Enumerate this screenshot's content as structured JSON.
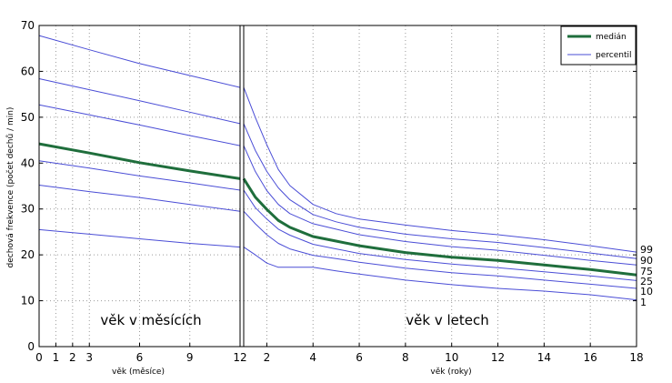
{
  "chart_data": [
    {
      "type": "line",
      "panel": "months",
      "xlabel": "věk (měsíce)",
      "ylabel": "dechová frekvence (počet dechů / min)",
      "panel_label": "věk v měsících",
      "xlim": [
        0,
        12
      ],
      "ylim": [
        0,
        70
      ],
      "x_ticks": [
        0,
        1,
        2,
        3,
        6,
        9,
        12
      ],
      "y_ticks": [
        0,
        10,
        20,
        30,
        40,
        50,
        60,
        70
      ],
      "grid": true,
      "x": [
        0,
        3,
        6,
        9,
        12
      ],
      "series": [
        {
          "name": "medián",
          "role": "median",
          "values": [
            44.2,
            42.2,
            40.1,
            38.3,
            36.6
          ]
        },
        {
          "percentile": "1",
          "values": [
            25.5,
            24.5,
            23.5,
            22.5,
            21.7
          ]
        },
        {
          "percentile": "10",
          "values": [
            35.2,
            33.8,
            32.5,
            31.0,
            29.5
          ]
        },
        {
          "percentile": "25",
          "values": [
            40.5,
            38.9,
            37.2,
            35.7,
            34.1
          ]
        },
        {
          "percentile": "75",
          "values": [
            52.7,
            50.5,
            48.3,
            46.0,
            43.8
          ]
        },
        {
          "percentile": "90",
          "values": [
            58.4,
            56.0,
            53.6,
            51.1,
            48.6
          ]
        },
        {
          "percentile": "99",
          "values": [
            67.8,
            64.7,
            61.7,
            59.1,
            56.5
          ]
        }
      ]
    },
    {
      "type": "line",
      "panel": "years",
      "xlabel": "věk (roky)",
      "panel_label": "věk v letech",
      "xlim": [
        1,
        18
      ],
      "ylim": [
        0,
        70
      ],
      "x_ticks": [
        2,
        4,
        6,
        8,
        10,
        12,
        14,
        16,
        18
      ],
      "y_ticks": [
        0,
        10,
        20,
        30,
        40,
        50,
        60,
        70
      ],
      "grid": true,
      "x": [
        1,
        1.5,
        2,
        2.5,
        3,
        4,
        5,
        6,
        8,
        10,
        12,
        14,
        16,
        18
      ],
      "series": [
        {
          "name": "medián",
          "role": "median",
          "values": [
            36.6,
            32.6,
            29.9,
            27.5,
            26.0,
            24.0,
            23.0,
            22.0,
            20.5,
            19.5,
            18.8,
            17.8,
            16.8,
            15.6
          ]
        },
        {
          "percentile": "1",
          "values": [
            21.7,
            20.0,
            18.2,
            17.3,
            17.3,
            17.3,
            16.5,
            15.8,
            14.5,
            13.5,
            12.7,
            12.1,
            11.3,
            10.2
          ]
        },
        {
          "percentile": "10",
          "values": [
            29.5,
            26.8,
            24.4,
            22.5,
            21.3,
            19.9,
            19.2,
            18.4,
            17.1,
            16.1,
            15.4,
            14.5,
            13.6,
            12.7
          ]
        },
        {
          "percentile": "25",
          "values": [
            34.1,
            30.3,
            27.8,
            25.6,
            24.3,
            22.3,
            21.3,
            20.3,
            19.0,
            18.0,
            17.2,
            16.3,
            15.4,
            14.4
          ]
        },
        {
          "percentile": "75",
          "values": [
            43.8,
            38.2,
            34.0,
            31.0,
            29.0,
            26.8,
            25.6,
            24.4,
            22.9,
            21.8,
            21.0,
            19.9,
            18.8,
            17.8
          ]
        },
        {
          "percentile": "90",
          "values": [
            48.6,
            42.8,
            38.2,
            34.6,
            32.0,
            28.8,
            27.2,
            26.0,
            24.5,
            23.5,
            22.7,
            21.6,
            20.4,
            19.2
          ]
        },
        {
          "percentile": "99",
          "values": [
            56.5,
            50.0,
            44.0,
            38.6,
            35.1,
            31.0,
            29.0,
            27.8,
            26.5,
            25.3,
            24.4,
            23.3,
            22.0,
            20.6
          ]
        }
      ]
    }
  ],
  "legend": {
    "placement": "top-right",
    "items": [
      {
        "label": "medián",
        "color": "#1f6e3c"
      },
      {
        "label": "percentil",
        "color": "#4a4dd6"
      }
    ]
  },
  "percentile_labels": [
    "99",
    "90",
    "75",
    "25",
    "10",
    "1"
  ],
  "colors": {
    "median": "#1f6e3c",
    "percentile": "#4a4dd6",
    "grid": "#9a9a9a",
    "axis": "#000000"
  }
}
